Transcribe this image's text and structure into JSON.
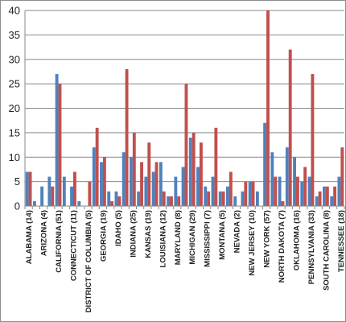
{
  "chart_data": {
    "type": "bar",
    "title": "",
    "xlabel": "",
    "ylabel": "",
    "ylim": [
      0,
      40
    ],
    "yticks": [
      0,
      5,
      10,
      15,
      20,
      25,
      30,
      35,
      40
    ],
    "grid": true,
    "legend": "none",
    "colors": {
      "series_a": "#4f81bd",
      "series_b": "#c0504d"
    },
    "categories": [
      "ALABAMA (14)",
      "",
      "ARIZONA (4)",
      "",
      "CALIFORNIA (51)",
      "",
      "CONNECTICUT (11)",
      "",
      "DISTRICT OF COLUMBIA (5)",
      "",
      "GEORGIA (19)",
      "",
      "IDAHO (5)",
      "",
      "INDIANA (25)",
      "",
      "KANSAS (19)",
      "",
      "LOUISIANA (12)",
      "",
      "MARYLAND (8)",
      "",
      "MICHIGAN (29)",
      "",
      "MISSISSIPPI (7)",
      "",
      "MONTANA (5)",
      "",
      "NEVADA (2)",
      "",
      "NEW JERSEY (10)",
      "",
      "NEW YORK (57)",
      "",
      "NORTH DAKOTA (7)",
      "",
      "OKLAHOMA (16)",
      "",
      "PENNSYLVANIA (33)",
      "",
      "SOUTH CAROLINA (8)",
      "",
      "TENNESSEE (18)"
    ],
    "series": [
      {
        "values": [
          7,
          1,
          4,
          6,
          27,
          6,
          4,
          1,
          0,
          12,
          9,
          3,
          3,
          11,
          10,
          3,
          6,
          7,
          9,
          2,
          6,
          8,
          14,
          8,
          4,
          6,
          3,
          4,
          2,
          3,
          5,
          3,
          17,
          11,
          6,
          12,
          10,
          5,
          6,
          2,
          4,
          2,
          6
        ]
      },
      {
        "values": [
          7,
          0,
          0,
          4,
          25,
          0,
          7,
          0,
          5,
          16,
          10,
          1,
          2,
          28,
          15,
          9,
          13,
          9,
          3,
          2,
          2,
          25,
          15,
          13,
          3,
          16,
          3,
          7,
          0,
          5,
          5,
          0,
          40,
          6,
          1,
          32,
          6,
          8,
          27,
          3,
          4,
          4,
          12
        ]
      }
    ]
  }
}
